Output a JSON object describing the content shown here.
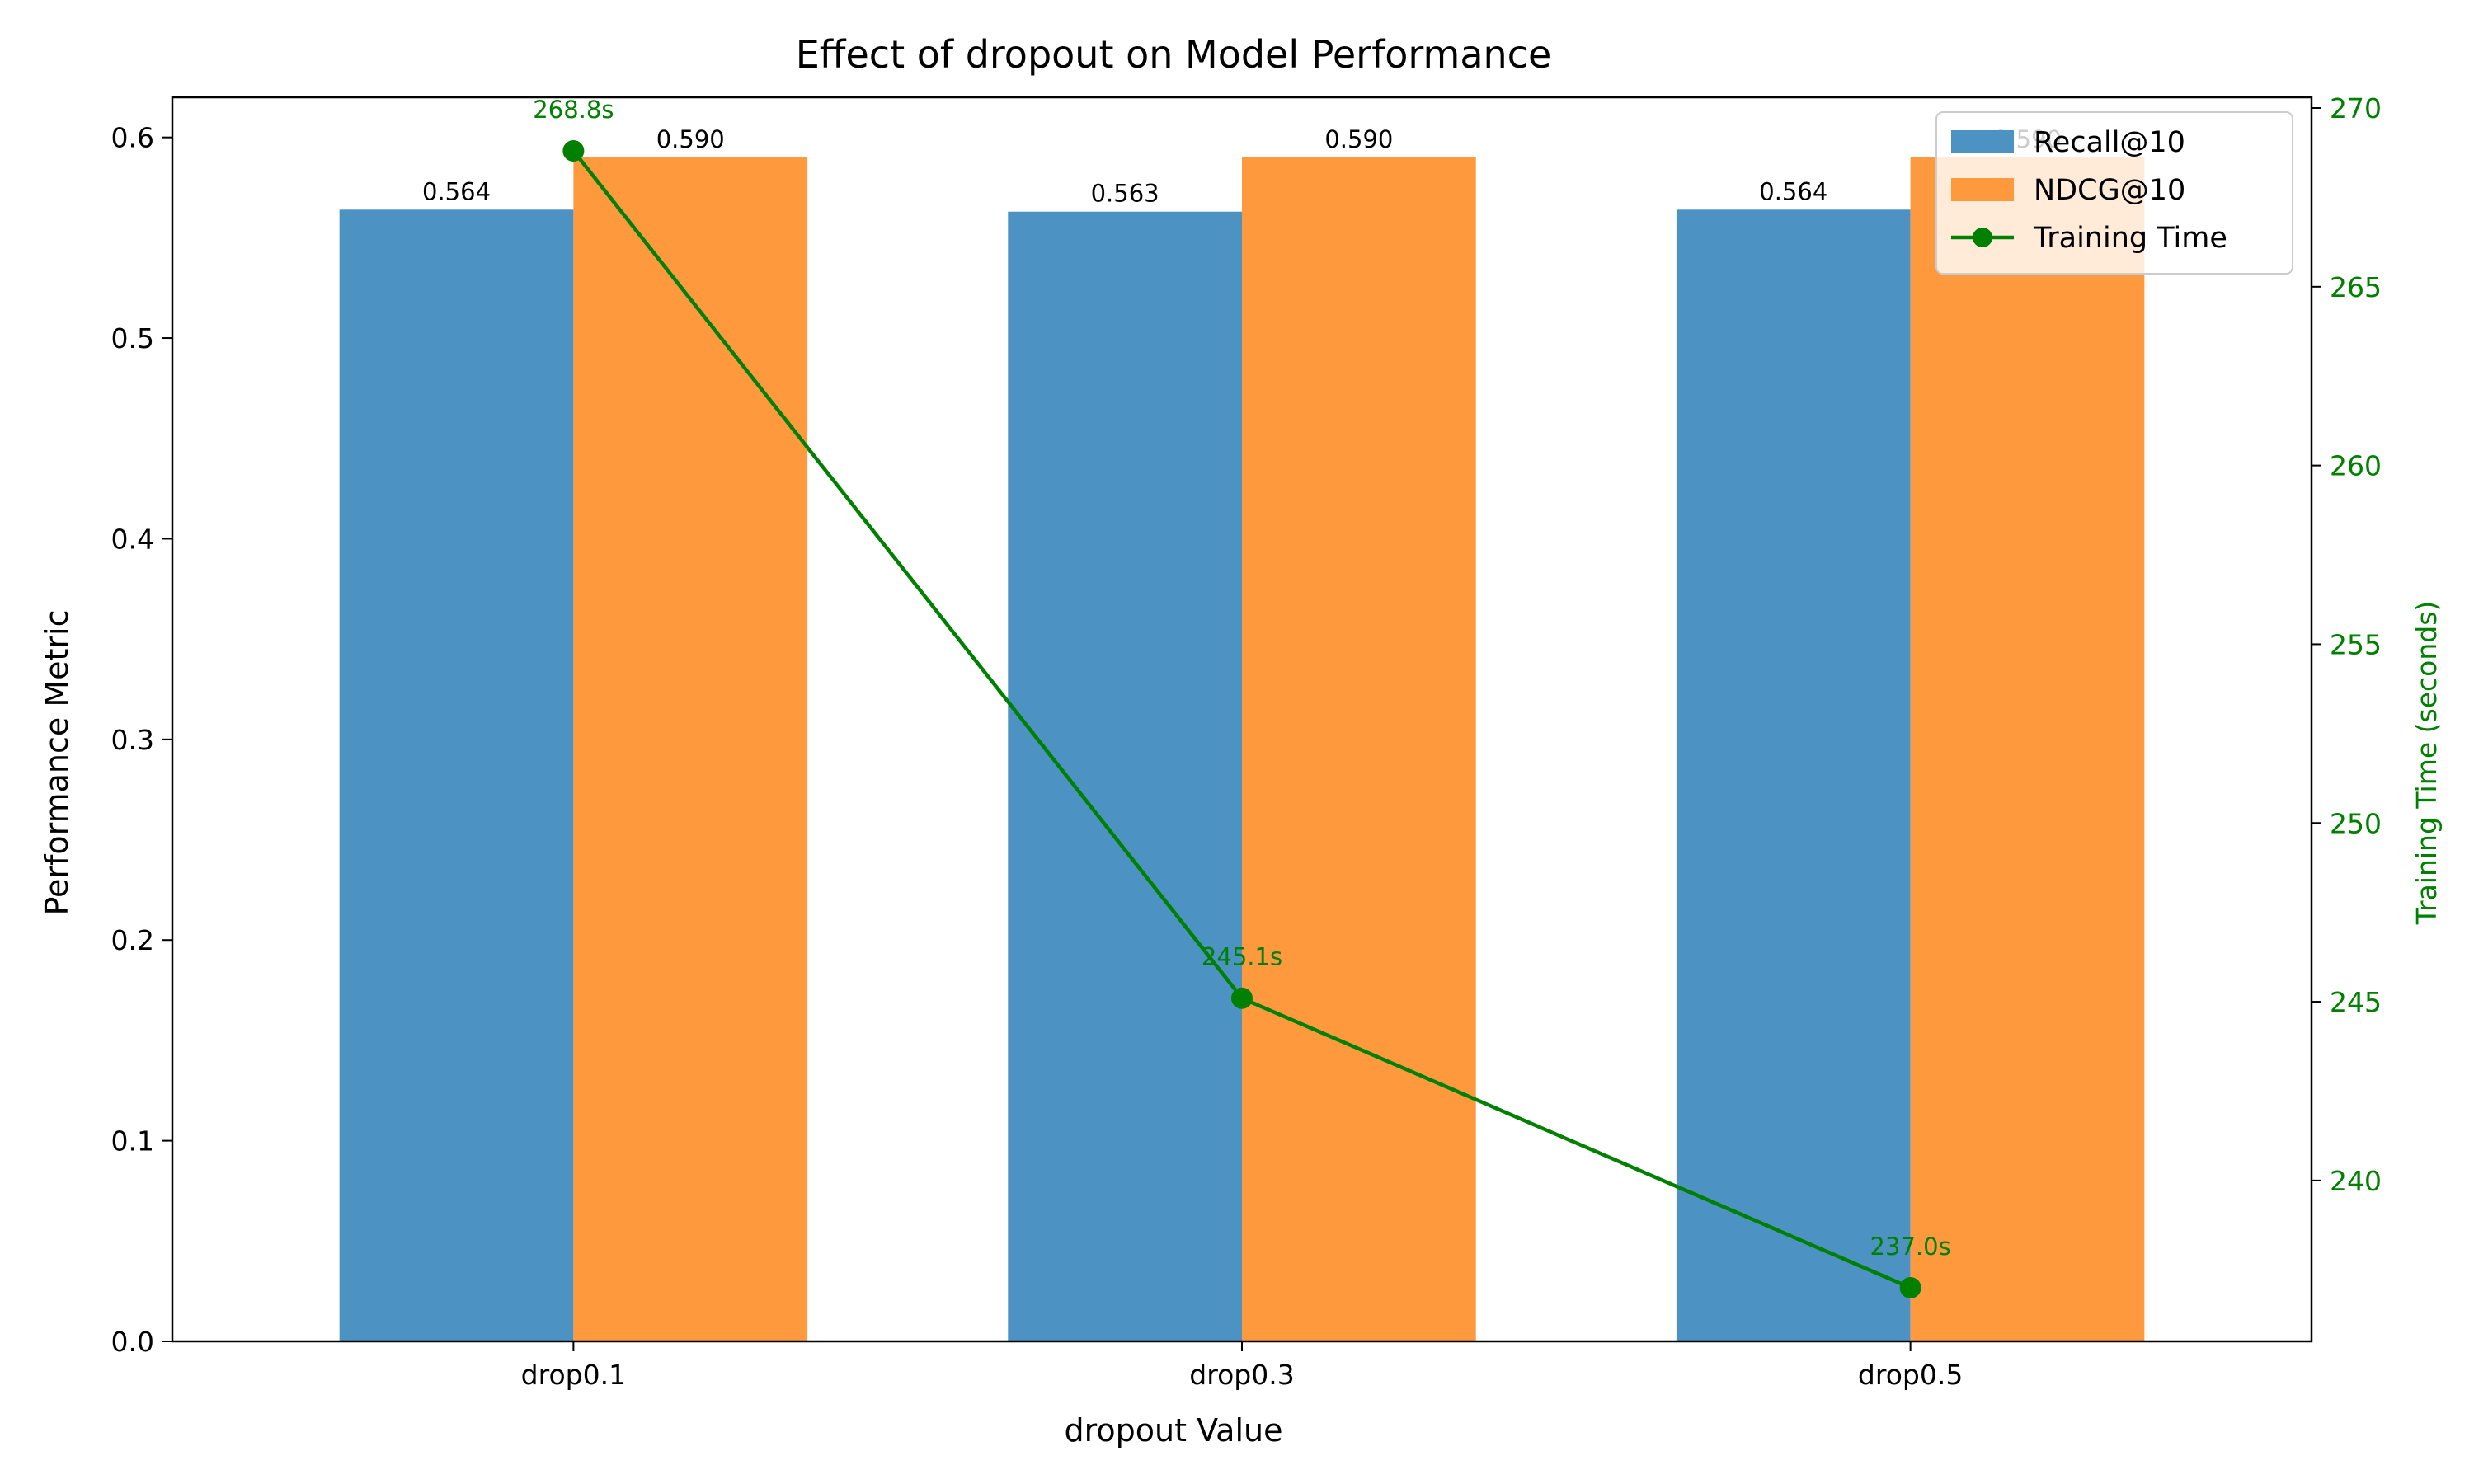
{
  "chart_data": {
    "type": "bar",
    "title": "Effect of dropout on Model Performance",
    "xlabel": "dropout Value",
    "ylabel": "Performance Metric",
    "y2label": "Training Time (seconds)",
    "categories": [
      "drop0.1",
      "drop0.3",
      "drop0.5"
    ],
    "ylim": [
      0,
      0.62
    ],
    "yticks": [
      "0.0",
      "0.1",
      "0.2",
      "0.3",
      "0.4",
      "0.5",
      "0.6"
    ],
    "y2lim": [
      235.5,
      270.3
    ],
    "y2ticks": [
      "240",
      "245",
      "250",
      "255",
      "260",
      "265",
      "270"
    ],
    "series": [
      {
        "name": "Recall@10",
        "kind": "bar",
        "color": "#4c92c3",
        "values": [
          0.564,
          0.563,
          0.564
        ],
        "labels": [
          "0.564",
          "0.563",
          "0.564"
        ]
      },
      {
        "name": "NDCG@10",
        "kind": "bar",
        "color": "#ff993e",
        "values": [
          0.59,
          0.59,
          0.59
        ],
        "labels": [
          "0.590",
          "0.590",
          "0.590"
        ]
      },
      {
        "name": "Training Time",
        "kind": "line",
        "axis": "right",
        "color": "#008000",
        "values": [
          268.8,
          245.1,
          237.0
        ],
        "labels": [
          "268.8s",
          "245.1s",
          "237.0s"
        ]
      }
    ],
    "legend": "top-right",
    "grid": false
  }
}
